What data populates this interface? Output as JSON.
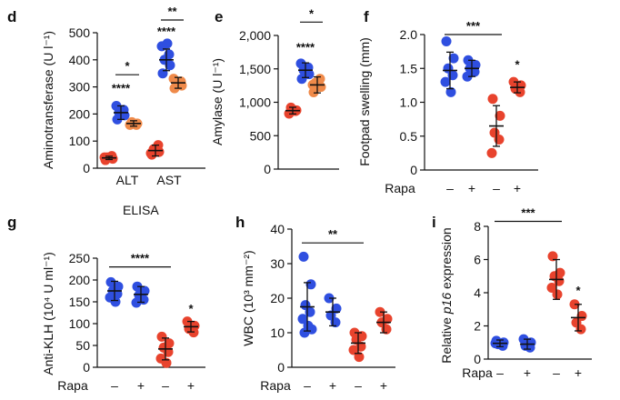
{
  "colors": {
    "blue": "#2f4fe0",
    "red": "#e8432d",
    "orange": "#ef8a4a",
    "black": "#111111"
  },
  "chart_data": [
    {
      "panel": "d",
      "type": "scatter",
      "ylabel": "Aminotransferase (U l⁻¹)",
      "ylim": [
        0,
        500
      ],
      "yticks": [
        "0",
        "100",
        "200",
        "300",
        "400",
        "500"
      ],
      "categories": [
        "ALT",
        "AST"
      ],
      "groups": [
        {
          "category": "ALT",
          "color": "red",
          "values": [
            30,
            35,
            40,
            45,
            40
          ],
          "mean": 38,
          "sd": 6
        },
        {
          "category": "ALT",
          "color": "blue",
          "values": [
            180,
            195,
            205,
            215,
            230,
            200
          ],
          "mean": 205,
          "sd": 25
        },
        {
          "category": "ALT",
          "color": "orange",
          "values": [
            160,
            165,
            170,
            160
          ],
          "mean": 165,
          "sd": 10
        },
        {
          "category": "AST",
          "color": "red",
          "values": [
            50,
            60,
            70,
            85,
            55
          ],
          "mean": 65,
          "sd": 20
        },
        {
          "category": "AST",
          "color": "blue",
          "values": [
            350,
            380,
            400,
            420,
            450,
            460
          ],
          "mean": 400,
          "sd": 40
        },
        {
          "category": "AST",
          "color": "orange",
          "values": [
            295,
            305,
            315,
            320,
            330
          ],
          "mean": 315,
          "sd": 20
        }
      ],
      "annotations": [
        {
          "text": "****",
          "group": 1,
          "value": 280
        },
        {
          "text": "****",
          "group": 4,
          "value": 490
        }
      ],
      "brackets": [
        {
          "text": "*",
          "from": 1,
          "to": 2,
          "value": 345
        },
        {
          "text": "**",
          "from": 4,
          "to": 5,
          "value": 560
        }
      ]
    },
    {
      "panel": "e",
      "type": "scatter",
      "ylabel": "Amylase (U l⁻¹)",
      "ylim": [
        0,
        2000
      ],
      "yticks": [
        "0",
        "500",
        "1,000",
        "1,500",
        "2,000"
      ],
      "groups": [
        {
          "color": "red",
          "values": [
            830,
            880,
            920,
            870
          ],
          "mean": 875,
          "sd": 50
        },
        {
          "color": "blue",
          "values": [
            1350,
            1420,
            1480,
            1520,
            1580,
            1500
          ],
          "mean": 1480,
          "sd": 110
        },
        {
          "color": "orange",
          "values": [
            1150,
            1230,
            1290,
            1350,
            1260
          ],
          "mean": 1260,
          "sd": 120
        }
      ],
      "annotations": [
        {
          "text": "****",
          "group": 1,
          "value": 1760
        }
      ],
      "brackets": [
        {
          "text": "*",
          "from": 1,
          "to": 2,
          "value": 2200
        }
      ]
    },
    {
      "panel": "f",
      "type": "scatter",
      "ylabel": "Footpad swelling (mm)",
      "ylim": [
        0,
        2.0
      ],
      "yticks": [
        "0",
        "0.5",
        "1.0",
        "1.5",
        "2.0"
      ],
      "row_label": "Rapa",
      "treatment": [
        "–",
        "+",
        "–",
        "+"
      ],
      "groups": [
        {
          "color": "blue",
          "values": [
            1.9,
            1.65,
            1.5,
            1.4,
            1.3,
            1.15
          ],
          "mean": 1.47,
          "sd": 0.27
        },
        {
          "color": "blue",
          "values": [
            1.62,
            1.55,
            1.5,
            1.45,
            1.38
          ],
          "mean": 1.5,
          "sd": 0.12
        },
        {
          "color": "red",
          "values": [
            1.05,
            0.8,
            0.55,
            0.45,
            0.25
          ],
          "mean": 0.65,
          "sd": 0.3
        },
        {
          "color": "red",
          "values": [
            1.3,
            1.25,
            1.2,
            1.15
          ],
          "mean": 1.22,
          "sd": 0.08
        }
      ],
      "annotations": [
        {
          "text": "*",
          "group": 3,
          "value": 1.5
        }
      ],
      "brackets": [
        {
          "text": "***",
          "from": 0,
          "to": 2,
          "value": 2.0
        }
      ]
    },
    {
      "panel": "g",
      "type": "scatter",
      "title": "ELISA",
      "ylabel": "Anti-KLH (10⁴ U ml⁻¹)",
      "ylim": [
        0,
        250
      ],
      "yticks": [
        "0",
        "50",
        "100",
        "150",
        "200",
        "250"
      ],
      "row_label": "Rapa",
      "treatment": [
        "–",
        "+",
        "–",
        "+"
      ],
      "groups": [
        {
          "color": "blue",
          "values": [
            195,
            185,
            175,
            168,
            160,
            150
          ],
          "mean": 175,
          "sd": 22
        },
        {
          "color": "blue",
          "values": [
            185,
            175,
            165,
            155,
            148
          ],
          "mean": 167,
          "sd": 18
        },
        {
          "color": "red",
          "values": [
            70,
            55,
            45,
            35,
            20,
            10
          ],
          "mean": 42,
          "sd": 25
        },
        {
          "color": "red",
          "values": [
            105,
            95,
            88,
            80
          ],
          "mean": 93,
          "sd": 12
        }
      ],
      "annotations": [
        {
          "text": "*",
          "group": 3,
          "value": 125
        }
      ],
      "brackets": [
        {
          "text": "****",
          "from": 0,
          "to": 2,
          "value": 230
        }
      ]
    },
    {
      "panel": "h",
      "type": "scatter",
      "ylabel": "WBC (10³ mm⁻²)",
      "ylim": [
        0,
        40
      ],
      "yticks": [
        "0",
        "10",
        "20",
        "30",
        "40"
      ],
      "row_label": "Rapa",
      "treatment": [
        "–",
        "+",
        "–",
        "+"
      ],
      "groups": [
        {
          "color": "blue",
          "values": [
            32,
            24,
            18,
            16,
            14,
            12,
            11,
            10
          ],
          "mean": 17.5,
          "sd": 7
        },
        {
          "color": "blue",
          "values": [
            20,
            17,
            15,
            13
          ],
          "mean": 16,
          "sd": 4
        },
        {
          "color": "red",
          "values": [
            10,
            9,
            8,
            6,
            5,
            3
          ],
          "mean": 7,
          "sd": 3
        },
        {
          "color": "red",
          "values": [
            16,
            14,
            13,
            11
          ],
          "mean": 13,
          "sd": 3
        }
      ],
      "brackets": [
        {
          "text": "**",
          "from": 0,
          "to": 2,
          "value": 36
        }
      ]
    },
    {
      "panel": "i",
      "type": "scatter",
      "ylabel": "Relative p16 expression",
      "ylabel_italic": "p16",
      "ylim": [
        0,
        8
      ],
      "yticks": [
        "0",
        "2",
        "4",
        "6",
        "8"
      ],
      "row_label": "Rapa",
      "treatment": [
        "–",
        "+",
        "–",
        "+"
      ],
      "groups": [
        {
          "color": "blue",
          "values": [
            1.1,
            1.0,
            0.9,
            0.8,
            0.95
          ],
          "mean": 0.95,
          "sd": 0.2
        },
        {
          "color": "blue",
          "values": [
            1.2,
            1.0,
            0.8,
            0.7
          ],
          "mean": 0.9,
          "sd": 0.3
        },
        {
          "color": "red",
          "values": [
            6.2,
            5.2,
            5.0,
            4.7,
            4.3,
            3.9
          ],
          "mean": 4.8,
          "sd": 1.2
        },
        {
          "color": "red",
          "values": [
            3.3,
            2.6,
            2.2,
            1.8
          ],
          "mean": 2.5,
          "sd": 0.8
        }
      ],
      "annotations": [
        {
          "text": "*",
          "group": 3,
          "value": 3.9
        }
      ],
      "brackets": [
        {
          "text": "***",
          "from": 0,
          "to": 2,
          "value": 8.3
        }
      ]
    }
  ]
}
